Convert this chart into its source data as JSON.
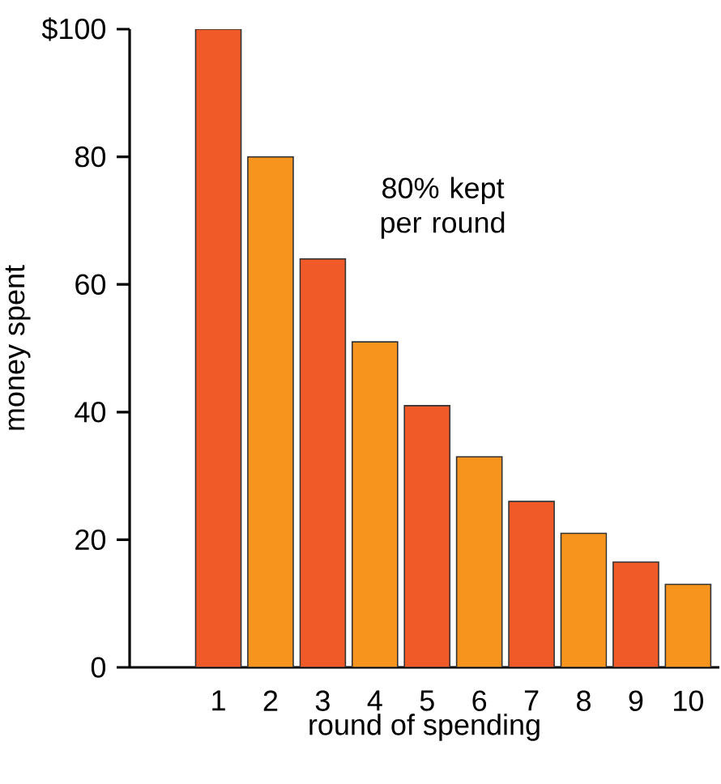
{
  "chart_data": {
    "type": "bar",
    "xlabel": "round of spending",
    "ylabel": "money spent",
    "categories": [
      "1",
      "2",
      "3",
      "4",
      "5",
      "6",
      "7",
      "8",
      "9",
      "10"
    ],
    "values": [
      100,
      80,
      64,
      51,
      41,
      33,
      26,
      21,
      16.5,
      13
    ],
    "colors": [
      "#f05a28",
      "#f7941d",
      "#f05a28",
      "#f7941d",
      "#f05a28",
      "#f7941d",
      "#f05a28",
      "#f7941d",
      "#f05a28",
      "#f7941d"
    ],
    "ylim": [
      0,
      100
    ],
    "yticks": [
      0,
      20,
      40,
      60,
      80,
      {
        "value": 100,
        "label": "$100"
      }
    ],
    "annotations": [
      "80% kept per round"
    ],
    "grid": false
  }
}
